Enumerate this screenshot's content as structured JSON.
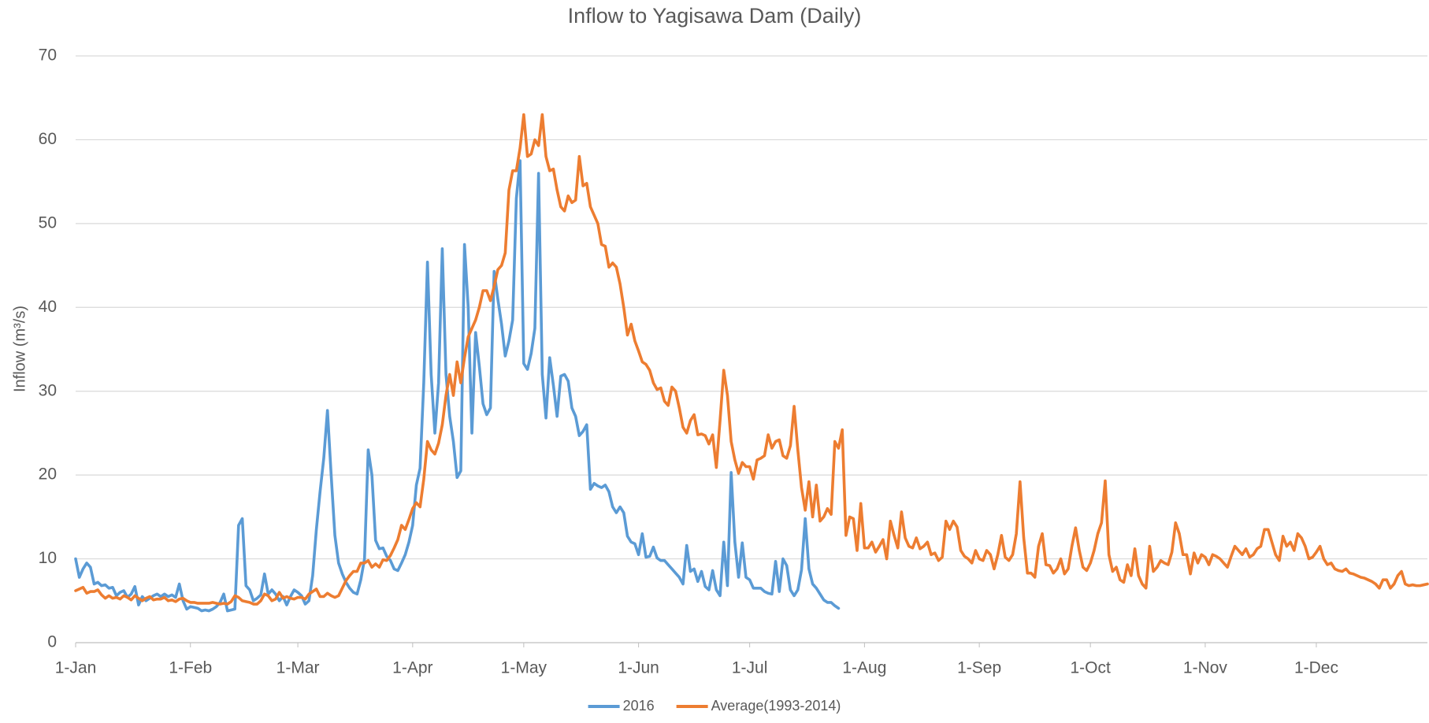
{
  "chart_data": {
    "type": "line",
    "title": "Inflow to Yagisawa Dam (Daily)",
    "y_label": "Inflow (m³/s)",
    "grid": true,
    "legend": "bottom",
    "xlim": [
      0,
      365
    ],
    "xticks": [
      {
        "value": 0,
        "label": "1-Jan"
      },
      {
        "value": 31,
        "label": "1-Feb"
      },
      {
        "value": 60,
        "label": "1-Mar"
      },
      {
        "value": 91,
        "label": "1-Apr"
      },
      {
        "value": 121,
        "label": "1-May"
      },
      {
        "value": 152,
        "label": "1-Jun"
      },
      {
        "value": 182,
        "label": "1-Jul"
      },
      {
        "value": 213,
        "label": "1-Aug"
      },
      {
        "value": 244,
        "label": "1-Sep"
      },
      {
        "value": 274,
        "label": "1-Oct"
      },
      {
        "value": 305,
        "label": "1-Nov"
      },
      {
        "value": 335,
        "label": "1-Dec"
      }
    ],
    "ylim": [
      0,
      70
    ],
    "yticks": [
      0,
      10,
      20,
      30,
      40,
      50,
      60,
      70
    ],
    "x": [
      0,
      1,
      2,
      3,
      4,
      5,
      6,
      7,
      8,
      9,
      10,
      11,
      12,
      13,
      14,
      15,
      16,
      17,
      18,
      19,
      20,
      21,
      22,
      23,
      24,
      25,
      26,
      27,
      28,
      29,
      30,
      31,
      32,
      33,
      34,
      35,
      36,
      37,
      38,
      39,
      40,
      41,
      42,
      43,
      44,
      45,
      46,
      47,
      48,
      49,
      50,
      51,
      52,
      53,
      54,
      55,
      56,
      57,
      58,
      59,
      60,
      61,
      62,
      63,
      64,
      65,
      66,
      67,
      68,
      69,
      70,
      71,
      72,
      73,
      74,
      75,
      76,
      77,
      78,
      79,
      80,
      81,
      82,
      83,
      84,
      85,
      86,
      87,
      88,
      89,
      90,
      91,
      92,
      93,
      94,
      95,
      96,
      97,
      98,
      99,
      100,
      101,
      102,
      103,
      104,
      105,
      106,
      107,
      108,
      109,
      110,
      111,
      112,
      113,
      114,
      115,
      116,
      117,
      118,
      119,
      120,
      121,
      122,
      123,
      124,
      125,
      126,
      127,
      128,
      129,
      130,
      131,
      132,
      133,
      134,
      135,
      136,
      137,
      138,
      139,
      140,
      141,
      142,
      143,
      144,
      145,
      146,
      147,
      148,
      149,
      150,
      151,
      152,
      153,
      154,
      155,
      156,
      157,
      158,
      159,
      160,
      161,
      162,
      163,
      164,
      165,
      166,
      167,
      168,
      169,
      170,
      171,
      172,
      173,
      174,
      175,
      176,
      177,
      178,
      179,
      180,
      181,
      182,
      183,
      184,
      185,
      186,
      187,
      188,
      189,
      190,
      191,
      192,
      193,
      194,
      195,
      196,
      197,
      198,
      199,
      200,
      201,
      202,
      203,
      204,
      205,
      206,
      207,
      208,
      209,
      210,
      211,
      212,
      213,
      214,
      215,
      216,
      217,
      218,
      219,
      220,
      221,
      222,
      223,
      224,
      225,
      226,
      227,
      228,
      229,
      230,
      231,
      232,
      233,
      234,
      235,
      236,
      237,
      238,
      239,
      240,
      241,
      242,
      243,
      244,
      245,
      246,
      247,
      248,
      249,
      250,
      251,
      252,
      253,
      254,
      255,
      256,
      257,
      258,
      259,
      260,
      261,
      262,
      263,
      264,
      265,
      266,
      267,
      268,
      269,
      270,
      271,
      272,
      273,
      274,
      275,
      276,
      277,
      278,
      279,
      280,
      281,
      282,
      283,
      284,
      285,
      286,
      287,
      288,
      289,
      290,
      291,
      292,
      293,
      294,
      295,
      296,
      297,
      298,
      299,
      300,
      301,
      302,
      303,
      304,
      305,
      306,
      307,
      308,
      309,
      310,
      311,
      312,
      313,
      314,
      315,
      316,
      317,
      318,
      319,
      320,
      321,
      322,
      323,
      324,
      325,
      326,
      327,
      328,
      329,
      330,
      331,
      332,
      333,
      334,
      335,
      336,
      337,
      338,
      339,
      340,
      341,
      342,
      343,
      344,
      345,
      346,
      347,
      348,
      349,
      350,
      351,
      352,
      353,
      354,
      355,
      356,
      357,
      358,
      359,
      360,
      361,
      362,
      363,
      364,
      365
    ],
    "series": [
      {
        "name": "2016",
        "color": "#5b9bd5",
        "values": [
          10,
          7.8,
          8.8,
          9.5,
          9.0,
          7.0,
          7.2,
          6.8,
          6.9,
          6.5,
          6.6,
          5.6,
          6.0,
          6.2,
          5.4,
          5.8,
          6.7,
          4.5,
          5.5,
          5.0,
          5.3,
          5.6,
          5.8,
          5.5,
          5.8,
          5.5,
          5.7,
          5.4,
          7.0,
          5.0,
          4.0,
          4.3,
          4.2,
          4.1,
          3.8,
          3.9,
          3.8,
          4.0,
          4.3,
          4.8,
          5.8,
          3.8,
          3.9,
          4.0,
          14.0,
          14.8,
          6.8,
          6.3,
          5.0,
          5.3,
          5.7,
          8.2,
          5.8,
          6.3,
          5.8,
          5.0,
          5.5,
          4.5,
          5.5,
          6.3,
          6.0,
          5.6,
          4.6,
          5.0,
          8,
          13.5,
          18,
          22,
          27.7,
          20,
          12.8,
          9.5,
          8.2,
          7.2,
          6.5,
          6.0,
          5.8,
          7.5,
          10,
          23,
          20,
          12.2,
          11.2,
          11.3,
          10.3,
          9.8,
          8.8,
          8.6,
          9.5,
          10.5,
          12,
          14,
          18.8,
          20.8,
          31,
          45.4,
          32,
          25,
          31,
          47,
          32,
          27,
          24,
          19.7,
          20.5,
          47.5,
          40,
          25,
          37,
          33,
          28.5,
          27.2,
          28,
          44.3,
          41,
          38,
          34.2,
          36,
          38.5,
          53,
          57.5,
          33.3,
          32.6,
          34.5,
          37.5,
          56,
          32,
          26.8,
          34,
          30.7,
          27,
          31.8,
          32,
          31.2,
          28,
          27,
          24.7,
          25.2,
          26,
          18.3,
          19,
          18.7,
          18.5,
          18.8,
          18,
          16.2,
          15.5,
          16.2,
          15.5,
          12.7,
          12.0,
          11.8,
          10.5,
          13,
          10.2,
          10.3,
          11.4,
          10.1,
          9.8,
          9.8,
          9.3,
          8.8,
          8.3,
          7.8,
          7.0,
          11.6,
          8.5,
          8.8,
          7.3,
          8.5,
          6.7,
          6.3,
          8.6,
          6.3,
          5.6,
          12,
          6.8,
          20.3,
          12,
          7.8,
          11.9,
          7.8,
          7.5,
          6.5,
          6.5,
          6.5,
          6.1,
          5.9,
          5.8,
          9.7,
          6.1,
          10,
          9.2,
          6.3,
          5.6,
          6.3,
          8.7,
          14.8,
          8.8,
          7,
          6.5,
          5.8,
          5.1,
          4.8,
          4.8,
          4.4,
          4.1,
          null,
          null,
          null,
          null,
          null,
          null,
          null,
          null,
          null,
          null,
          null,
          null,
          null,
          null,
          null,
          null,
          null,
          null,
          null,
          null,
          null,
          null,
          null,
          null,
          null,
          null,
          null,
          null,
          null,
          null,
          null,
          null,
          null,
          null,
          null,
          null,
          null,
          null,
          null,
          null,
          null,
          null,
          null,
          null,
          null,
          null,
          null,
          null,
          null,
          null,
          null,
          null,
          null,
          null,
          null,
          null,
          null,
          null,
          null,
          null,
          null,
          null,
          null,
          null,
          null,
          null,
          null,
          null,
          null,
          null,
          null,
          null,
          null,
          null,
          null,
          null,
          null,
          null,
          null,
          null,
          null,
          null,
          null,
          null,
          null,
          null,
          null,
          null,
          null,
          null,
          null,
          null,
          null,
          null,
          null,
          null,
          null,
          null,
          null,
          null,
          null,
          null,
          null,
          null,
          null,
          null,
          null,
          null,
          null,
          null,
          null,
          null,
          null,
          null,
          null,
          null,
          null,
          null,
          null,
          null,
          null,
          null,
          null,
          null,
          null,
          null,
          null,
          null,
          null,
          null,
          null,
          null,
          null,
          null,
          null,
          null,
          null,
          null,
          null,
          null,
          null,
          null,
          null,
          null,
          null,
          null,
          null,
          null,
          null,
          null,
          null,
          null,
          null,
          null,
          null,
          null,
          null,
          null,
          null
        ]
      },
      {
        "name": "Average(1993-2014)",
        "color": "#ed7d31",
        "values": [
          6.2,
          6.4,
          6.6,
          5.9,
          6.1,
          6.1,
          6.3,
          5.7,
          5.3,
          5.6,
          5.3,
          5.4,
          5.2,
          5.6,
          5.4,
          5.1,
          5.6,
          5.3,
          5.0,
          5.3,
          5.5,
          5.1,
          5.2,
          5.2,
          5.4,
          5.0,
          5.1,
          4.9,
          5.2,
          5.3,
          5.0,
          4.8,
          4.8,
          4.7,
          4.7,
          4.7,
          4.7,
          4.8,
          4.7,
          4.6,
          4.7,
          4.6,
          4.9,
          5.6,
          5.4,
          5.0,
          4.9,
          4.8,
          4.6,
          4.6,
          5.0,
          5.8,
          5.6,
          5.0,
          5.2,
          6.0,
          5.3,
          5.5,
          5.3,
          5.2,
          5.4,
          5.4,
          5.2,
          5.8,
          6.1,
          6.4,
          5.5,
          5.5,
          5.9,
          5.6,
          5.4,
          5.6,
          6.5,
          7.4,
          8.0,
          8.5,
          8.5,
          9.5,
          9.5,
          9.8,
          9.0,
          9.4,
          9.0,
          9.9,
          9.8,
          10.4,
          11.3,
          12.3,
          14.0,
          13.5,
          14.7,
          16.0,
          16.7,
          16.2,
          19.5,
          24.0,
          23.0,
          22.5,
          23.8,
          26.0,
          29.5,
          32.0,
          29.5,
          33.5,
          31.0,
          34.0,
          36.5,
          37.5,
          38.5,
          40.0,
          42.0,
          42.0,
          40.8,
          42.5,
          44.5,
          45.0,
          46.5,
          54.0,
          56.3,
          56.3,
          59.0,
          63.0,
          58.0,
          58.3,
          60.0,
          59.3,
          63.0,
          58.0,
          56.3,
          56.5,
          54.0,
          52.0,
          51.5,
          53.3,
          52.5,
          52.8,
          58.0,
          54.5,
          54.8,
          52.0,
          51.0,
          50.0,
          47.5,
          47.3,
          44.8,
          45.3,
          44.8,
          42.8,
          40.0,
          36.7,
          38.0,
          36.0,
          34.8,
          33.5,
          33.2,
          32.5,
          31.0,
          30.2,
          30.4,
          28.8,
          28.3,
          30.5,
          30.0,
          28.0,
          25.7,
          25.0,
          26.5,
          27.2,
          24.8,
          24.9,
          24.7,
          23.7,
          24.8,
          20.9,
          26.5,
          32.5,
          29.5,
          24.0,
          21.8,
          20.2,
          21.5,
          21.0,
          21.0,
          19.5,
          21.8,
          22.0,
          22.3,
          24.8,
          23.2,
          24.0,
          24.2,
          22.3,
          22.0,
          23.5,
          28.2,
          23.0,
          18.5,
          15.8,
          19.2,
          15.0,
          18.8,
          14.5,
          15.0,
          16.0,
          15.3,
          24.0,
          23.2,
          25.4,
          12.8,
          15.0,
          14.8,
          11.0,
          16.6,
          11.3,
          11.3,
          12.0,
          10.8,
          11.5,
          12.3,
          10.0,
          14.5,
          12.8,
          11.3,
          15.6,
          12.5,
          11.5,
          11.3,
          12.5,
          11.2,
          11.5,
          12.0,
          10.5,
          10.7,
          9.8,
          10.2,
          14.5,
          13.5,
          14.5,
          13.8,
          11.0,
          10.3,
          10.0,
          9.5,
          11.0,
          10.0,
          9.8,
          11.0,
          10.5,
          8.8,
          10.5,
          12.8,
          10.2,
          9.8,
          10.5,
          13.0,
          19.2,
          12.5,
          8.3,
          8.3,
          7.8,
          11.5,
          13.0,
          9.3,
          9.2,
          8.3,
          8.8,
          10.0,
          8.2,
          8.8,
          11.5,
          13.7,
          11.0,
          9.0,
          8.6,
          9.5,
          11.0,
          13.0,
          14.3,
          19.3,
          10.5,
          8.5,
          9.0,
          7.5,
          7.2,
          9.3,
          8.0,
          11.2,
          8.0,
          7.0,
          6.5,
          11.5,
          8.5,
          9.0,
          9.8,
          9.5,
          9.3,
          10.8,
          14.3,
          13.0,
          10.5,
          10.5,
          8.2,
          10.7,
          9.5,
          10.5,
          10.2,
          9.3,
          10.5,
          10.3,
          10.0,
          9.5,
          9.0,
          10.3,
          11.5,
          11.0,
          10.5,
          11.2,
          10.2,
          10.5,
          11.2,
          11.5,
          13.5,
          13.5,
          12.0,
          10.5,
          9.8,
          12.7,
          11.5,
          12.0,
          11.0,
          13.0,
          12.5,
          11.5,
          10.0,
          10.2,
          10.8,
          11.5,
          10.0,
          9.3,
          9.5,
          8.8,
          8.6,
          8.5,
          8.8,
          8.3,
          8.2,
          8.0,
          7.8,
          7.7,
          7.5,
          7.3,
          7.0,
          6.5,
          7.5,
          7.5,
          6.5,
          7.0,
          8.0,
          8.5,
          7.0,
          6.8,
          6.9,
          6.8,
          6.8,
          6.9,
          7.0
        ]
      }
    ]
  }
}
